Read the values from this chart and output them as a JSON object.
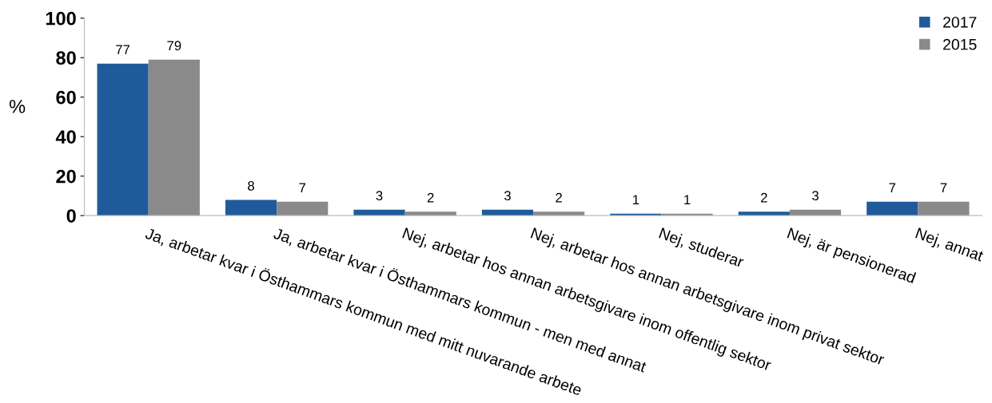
{
  "chart_data": {
    "type": "bar",
    "ylabel": "%",
    "categories": [
      "Ja, arbetar kvar i Östhammars kommun med mitt nuvarande arbete",
      "Ja, arbetar kvar i Östhammars kommun - men med annat",
      "Nej, arbetar hos annan arbetsgivare inom offentlig sektor",
      "Nej, arbetar hos annan arbetsgivare inom privat sektor",
      "Nej, studerar",
      "Nej, är pensionerad",
      "Nej, annat"
    ],
    "series": [
      {
        "name": "2017",
        "color": "#1f5b9b",
        "values": [
          77,
          8,
          3,
          3,
          1,
          2,
          7
        ]
      },
      {
        "name": "2015",
        "color": "#8a8a8a",
        "values": [
          79,
          7,
          2,
          2,
          1,
          3,
          7
        ]
      }
    ],
    "ylim": [
      0,
      100
    ],
    "yticks": [
      0,
      20,
      40,
      60,
      80,
      100
    ],
    "grid": false,
    "legend": "top right",
    "data_labels": true
  }
}
